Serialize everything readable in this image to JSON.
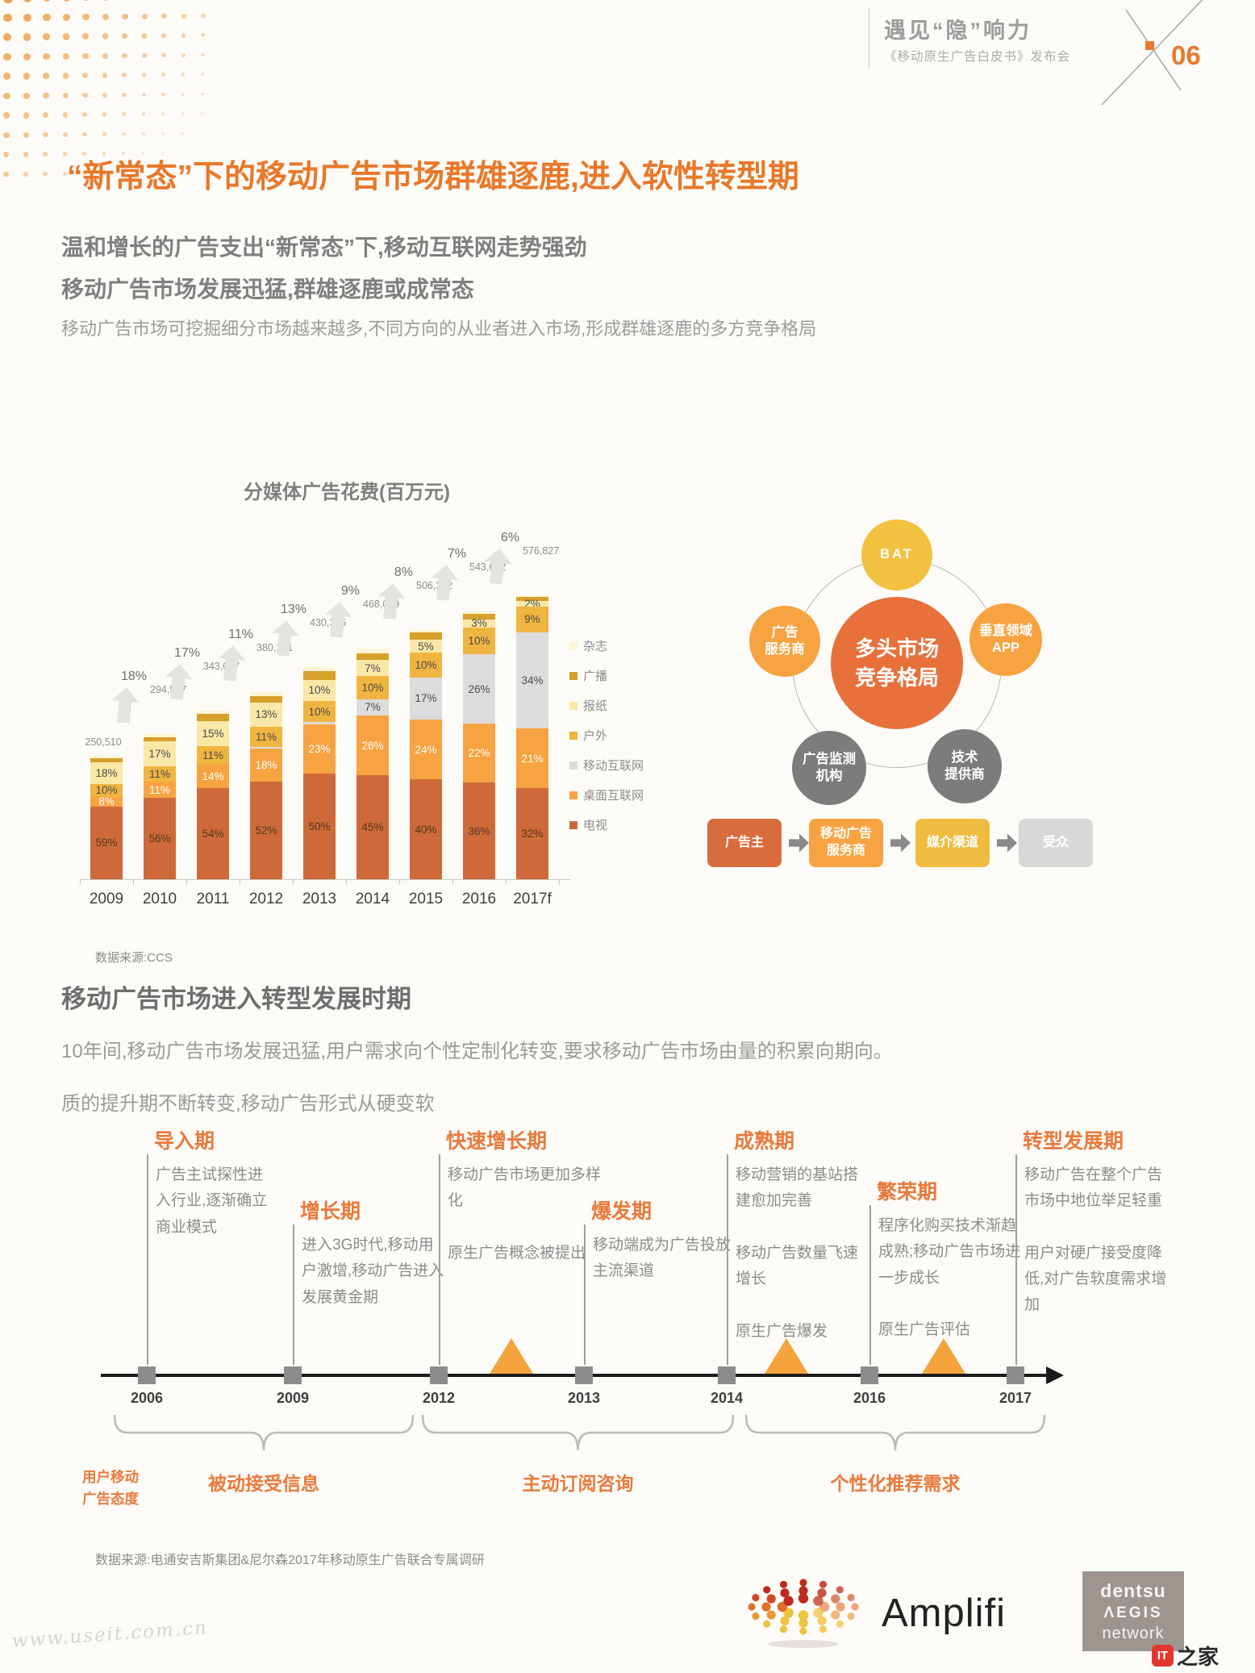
{
  "header": {
    "title": "遇见“隐”响力",
    "subtitle": "《移动原生广告白皮书》发布会",
    "page_number": "06"
  },
  "main_title": "“新常态”下的移动广告市场群雄逐鹿,进入软性转型期",
  "intro": {
    "heading_line1": "温和增长的广告支出“新常态”下,移动互联网走势强劲",
    "heading_line2": "移动广告市场发展迅猛,群雄逐鹿或成常态",
    "body": "移动广告市场可挖掘细分市场越来越多,不同方向的从业者进入市场,形成群雄逐鹿的多方竞争格局"
  },
  "chart_data": {
    "type": "bar",
    "stacked": true,
    "title": "分媒体广告花费(百万元)",
    "categories": [
      "2009",
      "2010",
      "2011",
      "2012",
      "2013",
      "2014",
      "2015",
      "2016",
      "2017f"
    ],
    "totals": [
      250510,
      294507,
      343077,
      380231,
      430355,
      468099,
      506372,
      543602,
      576827
    ],
    "growth_pct_between_years": [
      18,
      17,
      11,
      13,
      9,
      8,
      7,
      6
    ],
    "series": [
      {
        "name": "电视",
        "color": "#CE6A39",
        "label_color": "#54361F",
        "show_labels": true,
        "values": [
          59,
          56,
          54,
          52,
          50,
          45,
          40,
          36,
          32
        ]
      },
      {
        "name": "桌面互联网",
        "color": "#F7A341",
        "label_color": "#FFFFFF",
        "show_labels": true,
        "values": [
          8,
          11,
          14,
          18,
          23,
          26,
          24,
          22,
          21
        ]
      },
      {
        "name": "移动互联网",
        "color": "#DCDCDC",
        "label_color": "#4A4A4A",
        "show_labels": true,
        "values": [
          0,
          0,
          0,
          0.5,
          1,
          7,
          17,
          26,
          34
        ]
      },
      {
        "name": "户外",
        "color": "#F0B540",
        "label_color": "#4A4A4A",
        "show_labels": true,
        "values": [
          10,
          11,
          11,
          11,
          10,
          10,
          10,
          10,
          9
        ]
      },
      {
        "name": "报纸",
        "color": "#FBE8A6",
        "label_color": "#4A4A4A",
        "show_labels": true,
        "values": [
          18,
          17,
          15,
          13,
          10,
          7,
          5,
          3,
          2
        ]
      },
      {
        "name": "广播",
        "color": "#D6A02B",
        "label_color": "#4A4A4A",
        "show_labels": false,
        "values": [
          3,
          3,
          4,
          3.5,
          4,
          3,
          3,
          2,
          1.5
        ]
      },
      {
        "name": "杂志",
        "color": "#FCF4D4",
        "label_color": "#4A4A4A",
        "show_labels": false,
        "values": [
          2,
          2,
          2,
          2,
          2,
          2,
          1,
          1,
          0.5
        ]
      }
    ],
    "legend_position": "right",
    "source": "数据来源:CCS"
  },
  "market_diagram": {
    "center_label": "多头市场\n竞争格局",
    "center_color": "#E8703A",
    "satellites": [
      {
        "label": "BAT",
        "color": "#F2C13F"
      },
      {
        "label": "广告\n服务商",
        "color": "#F7A341"
      },
      {
        "label": "垂直领域\nAPP",
        "color": "#F7A341"
      },
      {
        "label": "广告监测\n机构",
        "color": "#7C7C7C"
      },
      {
        "label": "技术\n提供商",
        "color": "#7C7C7C"
      }
    ]
  },
  "value_chain": {
    "steps": [
      {
        "label": "广告主",
        "color": "#D96C3C"
      },
      {
        "label": "移动广告\n服务商",
        "color": "#F7A341"
      },
      {
        "label": "媒介渠道",
        "color": "#F0BC3F"
      },
      {
        "label": "受众",
        "color": "#D8D8D8"
      }
    ]
  },
  "section2": {
    "title": "移动广告市场进入转型发展时期",
    "body_line1": "10年间,移动广告市场发展迅猛,用户需求向个性定制化转变,要求移动广告市场由量的积累向期向。",
    "body_line2": "质的提升期不断转变,移动广告形式从硬变软",
    "source": "数据来源:电通安吉斯集团&尼尔森2017年移动原生广告联合专属调研"
  },
  "timeline": {
    "years": [
      "2006",
      "2009",
      "2012",
      "2013",
      "2014",
      "2016",
      "2017"
    ],
    "phases": [
      {
        "name": "导入期",
        "year": "2006",
        "desc": "广告主试探性进入行业,逐渐确立商业模式"
      },
      {
        "name": "增长期",
        "year": "2009",
        "desc": "进入3G时代,移动用户激增,移动广告进入发展黄金期"
      },
      {
        "name": "快速增长期",
        "year": "2012",
        "desc": "移动广告市场更加多样化\n\n原生广告概念被提出"
      },
      {
        "name": "爆发期",
        "year": "2013",
        "desc": "移动端成为广告投放主流渠道"
      },
      {
        "name": "成熟期",
        "year": "2014",
        "desc": "移动营销的基站搭建愈加完善\n\n移动广告数量飞速增长\n\n原生广告爆发"
      },
      {
        "name": "繁荣期",
        "year": "2016",
        "desc": "程序化购买技术渐趋成熟;移动广告市场进一步成长\n\n原生广告评估"
      },
      {
        "name": "转型发展期",
        "year": "2017",
        "desc": "移动广告在整个广告市场中地位举足轻重\n\n用户对硬广接受度降低,对广告软度需求增加"
      }
    ],
    "axis_side_label": "用户移动\n广告态度",
    "attitude_groups": [
      "被动接受信息",
      "主动订阅咨询",
      "个性化推荐需求"
    ]
  },
  "footer": {
    "amplifi": "Amplifi",
    "dentsu_lines": [
      "dentsu",
      "ΛEGIS",
      "network"
    ],
    "watermark": "www.useit.com.cn",
    "site_badge_icon": "IT",
    "site_badge_text": "之家"
  }
}
